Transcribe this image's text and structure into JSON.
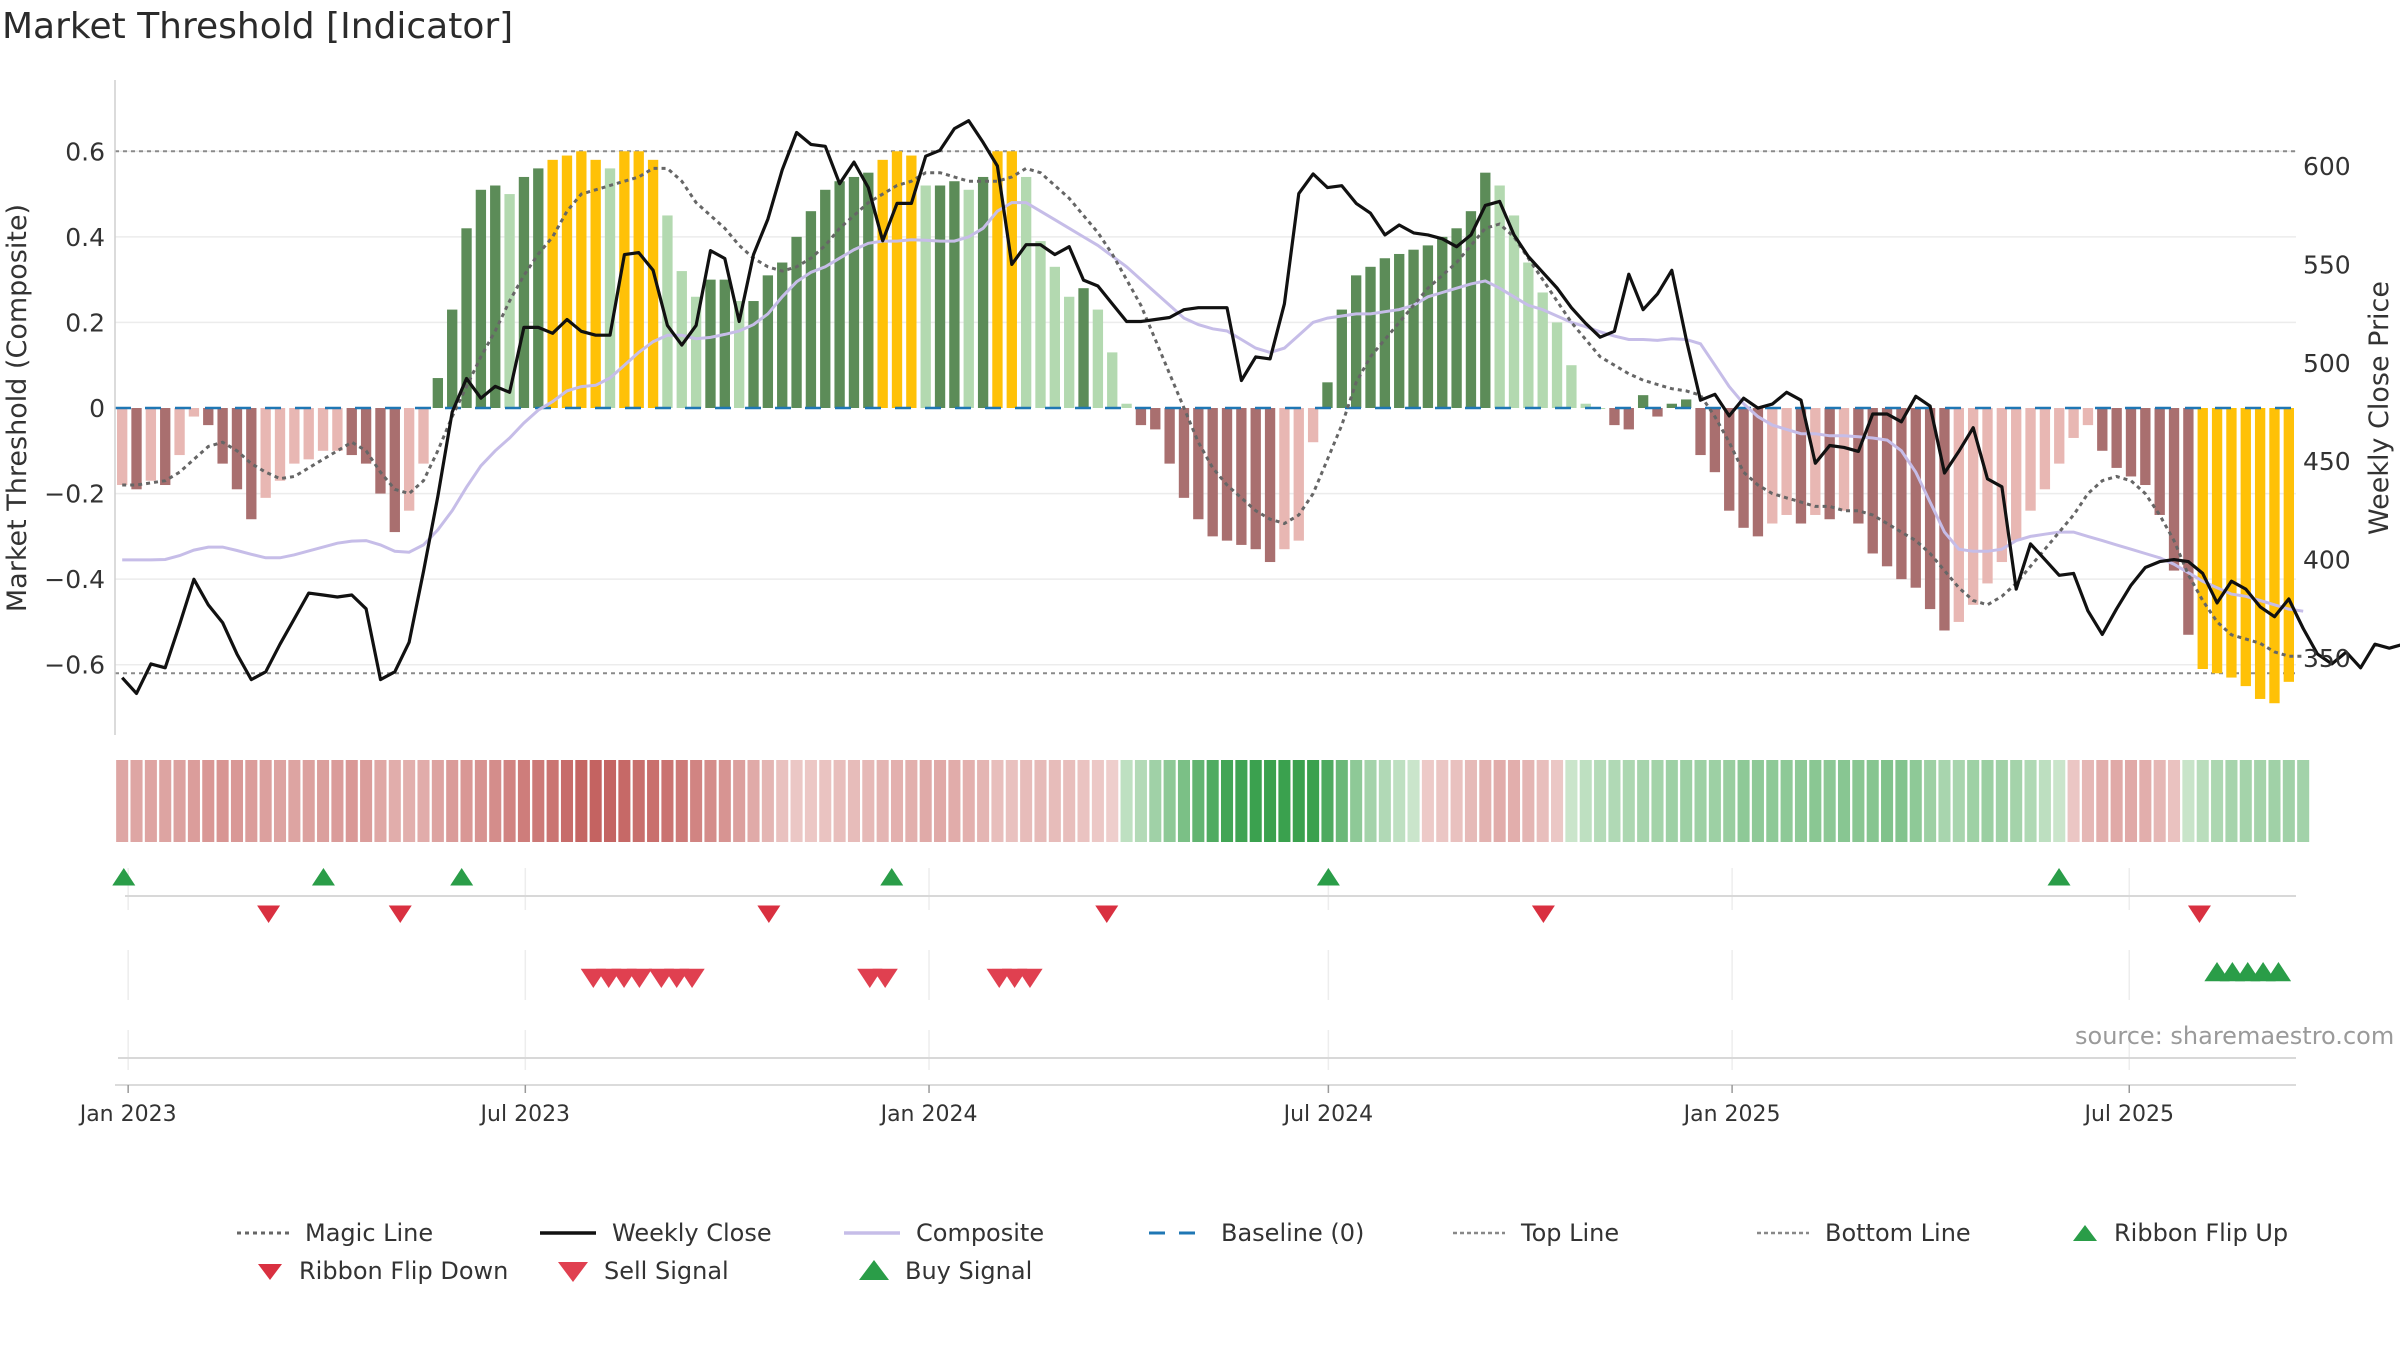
{
  "title": "Market Threshold [Indicator]",
  "source": "source: sharemaestro.com",
  "chart_data": {
    "type": "bar",
    "ylabel_left": "Market Threshold (Composite)",
    "ylabel_right": "Weekly Close Price",
    "ylim_left": [
      -0.75,
      0.75
    ],
    "ylim_right": [
      320,
      650
    ],
    "yticks_left": [
      0.6,
      0.4,
      0.2,
      0,
      -0.2,
      -0.4,
      -0.6
    ],
    "yticks_left_labels": [
      "0.6",
      "0.4",
      "0.2",
      "0",
      "−0.2",
      "−0.4",
      "−0.6"
    ],
    "yticks_right": [
      600,
      550,
      500,
      450,
      400,
      350
    ],
    "top_line": 0.6,
    "bottom_line": -0.62,
    "x_start": "2022-12-26",
    "x_end": "2025-09-15",
    "xticks": [
      {
        "date": "2023-01-01",
        "label": "Jan 2023"
      },
      {
        "date": "2023-07-01",
        "label": "Jul 2023"
      },
      {
        "date": "2024-01-01",
        "label": "Jan 2024"
      },
      {
        "date": "2024-07-01",
        "label": "Jul 2024"
      },
      {
        "date": "2025-01-01",
        "label": "Jan 2025"
      },
      {
        "date": "2025-07-01",
        "label": "Jul 2025"
      }
    ],
    "composite_bars": [
      -0.18,
      -0.19,
      -0.17,
      -0.18,
      -0.11,
      -0.02,
      -0.04,
      -0.13,
      -0.19,
      -0.26,
      -0.21,
      -0.17,
      -0.13,
      -0.12,
      -0.1,
      -0.1,
      -0.11,
      -0.13,
      -0.2,
      -0.29,
      -0.24,
      -0.13,
      0.07,
      0.23,
      0.42,
      0.51,
      0.52,
      0.5,
      0.54,
      0.56,
      0.58,
      0.59,
      0.6,
      0.58,
      0.56,
      0.6,
      0.6,
      0.58,
      0.45,
      0.32,
      0.26,
      0.3,
      0.3,
      0.25,
      0.25,
      0.31,
      0.34,
      0.4,
      0.46,
      0.51,
      0.53,
      0.54,
      0.55,
      0.58,
      0.6,
      0.59,
      0.52,
      0.52,
      0.53,
      0.51,
      0.54,
      0.6,
      0.6,
      0.54,
      0.39,
      0.33,
      0.26,
      0.28,
      0.23,
      0.13,
      0.01,
      -0.04,
      -0.05,
      -0.13,
      -0.21,
      -0.26,
      -0.3,
      -0.31,
      -0.32,
      -0.33,
      -0.36,
      -0.33,
      -0.31,
      -0.08,
      0.06,
      0.23,
      0.31,
      0.33,
      0.35,
      0.36,
      0.37,
      0.38,
      0.4,
      0.42,
      0.46,
      0.55,
      0.52,
      0.45,
      0.34,
      0.27,
      0.2,
      0.1,
      0.01,
      0.0,
      -0.04,
      -0.05,
      0.03,
      -0.02,
      0.01,
      0.02,
      -0.11,
      -0.15,
      -0.24,
      -0.28,
      -0.3,
      -0.27,
      -0.25,
      -0.27,
      -0.25,
      -0.26,
      -0.24,
      -0.27,
      -0.34,
      -0.37,
      -0.4,
      -0.42,
      -0.47,
      -0.52,
      -0.5,
      -0.46,
      -0.41,
      -0.36,
      -0.31,
      -0.24,
      -0.19,
      -0.13,
      -0.07,
      -0.04,
      -0.1,
      -0.14,
      -0.16,
      -0.18,
      -0.25,
      -0.38,
      -0.53,
      -0.61,
      -0.62,
      -0.63,
      -0.65,
      -0.68,
      -0.69,
      -0.64
    ],
    "weekly_close": [
      340,
      332,
      347,
      345,
      367,
      390,
      377,
      368,
      352,
      339,
      343,
      357,
      370,
      383,
      382,
      381,
      382,
      375,
      339,
      343,
      358,
      394,
      432,
      475,
      492,
      482,
      488,
      485,
      518,
      518,
      515,
      522,
      516,
      514,
      514,
      555,
      556,
      547,
      519,
      509,
      519,
      557,
      553,
      521,
      555,
      573,
      598,
      617,
      611,
      610,
      591,
      602,
      589,
      562,
      581,
      581,
      605,
      608,
      619,
      623,
      612,
      600,
      550,
      560,
      560,
      555,
      559,
      542,
      539,
      530,
      521,
      521,
      522,
      523,
      527,
      528,
      528,
      528,
      491,
      503,
      502,
      530,
      586,
      596,
      589,
      590,
      581,
      576,
      565,
      570,
      566,
      565,
      563,
      559,
      565,
      580,
      582,
      565,
      554,
      546,
      538,
      528,
      520,
      513,
      516,
      545,
      527,
      535,
      547,
      512,
      481,
      484,
      473,
      482,
      477,
      479,
      485,
      481,
      449,
      458,
      457,
      455,
      474,
      474,
      470,
      483,
      478,
      444,
      455,
      467,
      441,
      437,
      385,
      408,
      400,
      392,
      393,
      374,
      362,
      375,
      387,
      396,
      399,
      400,
      399,
      393,
      378,
      389,
      385,
      376,
      371,
      380,
      365,
      352,
      347,
      353,
      345,
      357,
      355,
      357,
      351,
      352,
      362
    ],
    "composite_line": [
      -0.355,
      -0.355,
      -0.355,
      -0.354,
      -0.345,
      -0.332,
      -0.325,
      -0.325,
      -0.333,
      -0.342,
      -0.35,
      -0.35,
      -0.343,
      -0.334,
      -0.325,
      -0.316,
      -0.311,
      -0.31,
      -0.32,
      -0.335,
      -0.337,
      -0.32,
      -0.285,
      -0.24,
      -0.185,
      -0.135,
      -0.1,
      -0.07,
      -0.035,
      -0.005,
      0.015,
      0.04,
      0.05,
      0.053,
      0.07,
      0.1,
      0.13,
      0.155,
      0.17,
      0.17,
      0.162,
      0.165,
      0.172,
      0.18,
      0.195,
      0.22,
      0.26,
      0.295,
      0.317,
      0.33,
      0.35,
      0.37,
      0.385,
      0.39,
      0.39,
      0.393,
      0.392,
      0.39,
      0.39,
      0.4,
      0.42,
      0.46,
      0.48,
      0.48,
      0.46,
      0.44,
      0.42,
      0.4,
      0.38,
      0.355,
      0.33,
      0.3,
      0.27,
      0.24,
      0.21,
      0.195,
      0.185,
      0.18,
      0.16,
      0.14,
      0.13,
      0.14,
      0.17,
      0.2,
      0.21,
      0.215,
      0.22,
      0.22,
      0.225,
      0.23,
      0.24,
      0.26,
      0.27,
      0.28,
      0.29,
      0.297,
      0.28,
      0.26,
      0.24,
      0.23,
      0.215,
      0.2,
      0.19,
      0.178,
      0.168,
      0.16,
      0.16,
      0.158,
      0.162,
      0.16,
      0.15,
      0.1,
      0.05,
      0.01,
      -0.02,
      -0.04,
      -0.05,
      -0.06,
      -0.06,
      -0.065,
      -0.065,
      -0.067,
      -0.07,
      -0.075,
      -0.1,
      -0.15,
      -0.22,
      -0.29,
      -0.33,
      -0.335,
      -0.335,
      -0.33,
      -0.31,
      -0.3,
      -0.295,
      -0.29,
      -0.29,
      -0.3,
      -0.31,
      -0.32,
      -0.33,
      -0.34,
      -0.35,
      -0.365,
      -0.385,
      -0.405,
      -0.42,
      -0.435,
      -0.44,
      -0.45,
      -0.46,
      -0.47,
      -0.475
    ],
    "magic_line": [
      -0.18,
      -0.18,
      -0.175,
      -0.17,
      -0.15,
      -0.12,
      -0.09,
      -0.08,
      -0.1,
      -0.13,
      -0.15,
      -0.165,
      -0.16,
      -0.14,
      -0.12,
      -0.1,
      -0.08,
      -0.1,
      -0.15,
      -0.19,
      -0.2,
      -0.17,
      -0.1,
      -0.02,
      0.05,
      0.12,
      0.18,
      0.25,
      0.31,
      0.36,
      0.4,
      0.46,
      0.5,
      0.51,
      0.52,
      0.53,
      0.54,
      0.56,
      0.56,
      0.53,
      0.48,
      0.45,
      0.42,
      0.38,
      0.35,
      0.33,
      0.32,
      0.33,
      0.35,
      0.38,
      0.42,
      0.45,
      0.48,
      0.5,
      0.52,
      0.53,
      0.55,
      0.55,
      0.54,
      0.53,
      0.53,
      0.53,
      0.54,
      0.56,
      0.55,
      0.52,
      0.49,
      0.45,
      0.41,
      0.36,
      0.3,
      0.24,
      0.16,
      0.08,
      0.0,
      -0.08,
      -0.14,
      -0.18,
      -0.21,
      -0.24,
      -0.26,
      -0.27,
      -0.25,
      -0.2,
      -0.12,
      -0.04,
      0.06,
      0.12,
      0.16,
      0.2,
      0.24,
      0.28,
      0.31,
      0.34,
      0.38,
      0.42,
      0.43,
      0.4,
      0.35,
      0.3,
      0.25,
      0.2,
      0.16,
      0.12,
      0.1,
      0.08,
      0.065,
      0.055,
      0.045,
      0.04,
      0.03,
      -0.02,
      -0.08,
      -0.15,
      -0.18,
      -0.2,
      -0.21,
      -0.22,
      -0.23,
      -0.23,
      -0.24,
      -0.24,
      -0.25,
      -0.27,
      -0.29,
      -0.31,
      -0.34,
      -0.38,
      -0.42,
      -0.45,
      -0.46,
      -0.44,
      -0.41,
      -0.37,
      -0.33,
      -0.29,
      -0.25,
      -0.2,
      -0.17,
      -0.16,
      -0.17,
      -0.2,
      -0.25,
      -0.31,
      -0.39,
      -0.45,
      -0.5,
      -0.53,
      -0.54,
      -0.55,
      -0.57,
      -0.58,
      -0.58
    ],
    "ribbon_buy": [
      "2022-12-30",
      "2023-03-31",
      "2023-06-02",
      "2023-12-15",
      "2024-07-01",
      "2025-05-30"
    ],
    "ribbon_sell": [
      "2023-03-06",
      "2023-05-05",
      "2023-10-20",
      "2024-03-22",
      "2024-10-07",
      "2025-08-02"
    ],
    "sell_signals": [
      "2023-08-01",
      "2023-08-08",
      "2023-08-15",
      "2023-08-22",
      "2023-09-01",
      "2023-09-08",
      "2023-09-15",
      "2023-12-05",
      "2023-12-12",
      "2024-02-02",
      "2024-02-09",
      "2024-02-16"
    ],
    "buy_signals": [
      "2025-08-10",
      "2025-08-17",
      "2025-08-24",
      "2025-08-31",
      "2025-09-07"
    ]
  },
  "legend": {
    "magic_line": "Magic Line",
    "weekly_close": "Weekly Close",
    "composite": "Composite",
    "baseline": "Baseline (0)",
    "top_line": "Top Line",
    "bottom_line": "Bottom Line",
    "ribbon_flip_up": "Ribbon Flip Up",
    "ribbon_flip_down": "Ribbon Flip Down",
    "sell_signal": "Sell Signal",
    "buy_signal": "Buy Signal"
  },
  "colors": {
    "strong_up": "#5c8c58",
    "light_up": "#b3d9b0",
    "yellow": "#ffc107",
    "strong_down": "#a96f6f",
    "light_down": "#e8b7b3",
    "close": "#111111",
    "composite": "#c6bde8",
    "magic": "#666666",
    "baseline": "#1f77b4",
    "sig_green": "#2a9d48",
    "sig_red": "#d93040"
  }
}
